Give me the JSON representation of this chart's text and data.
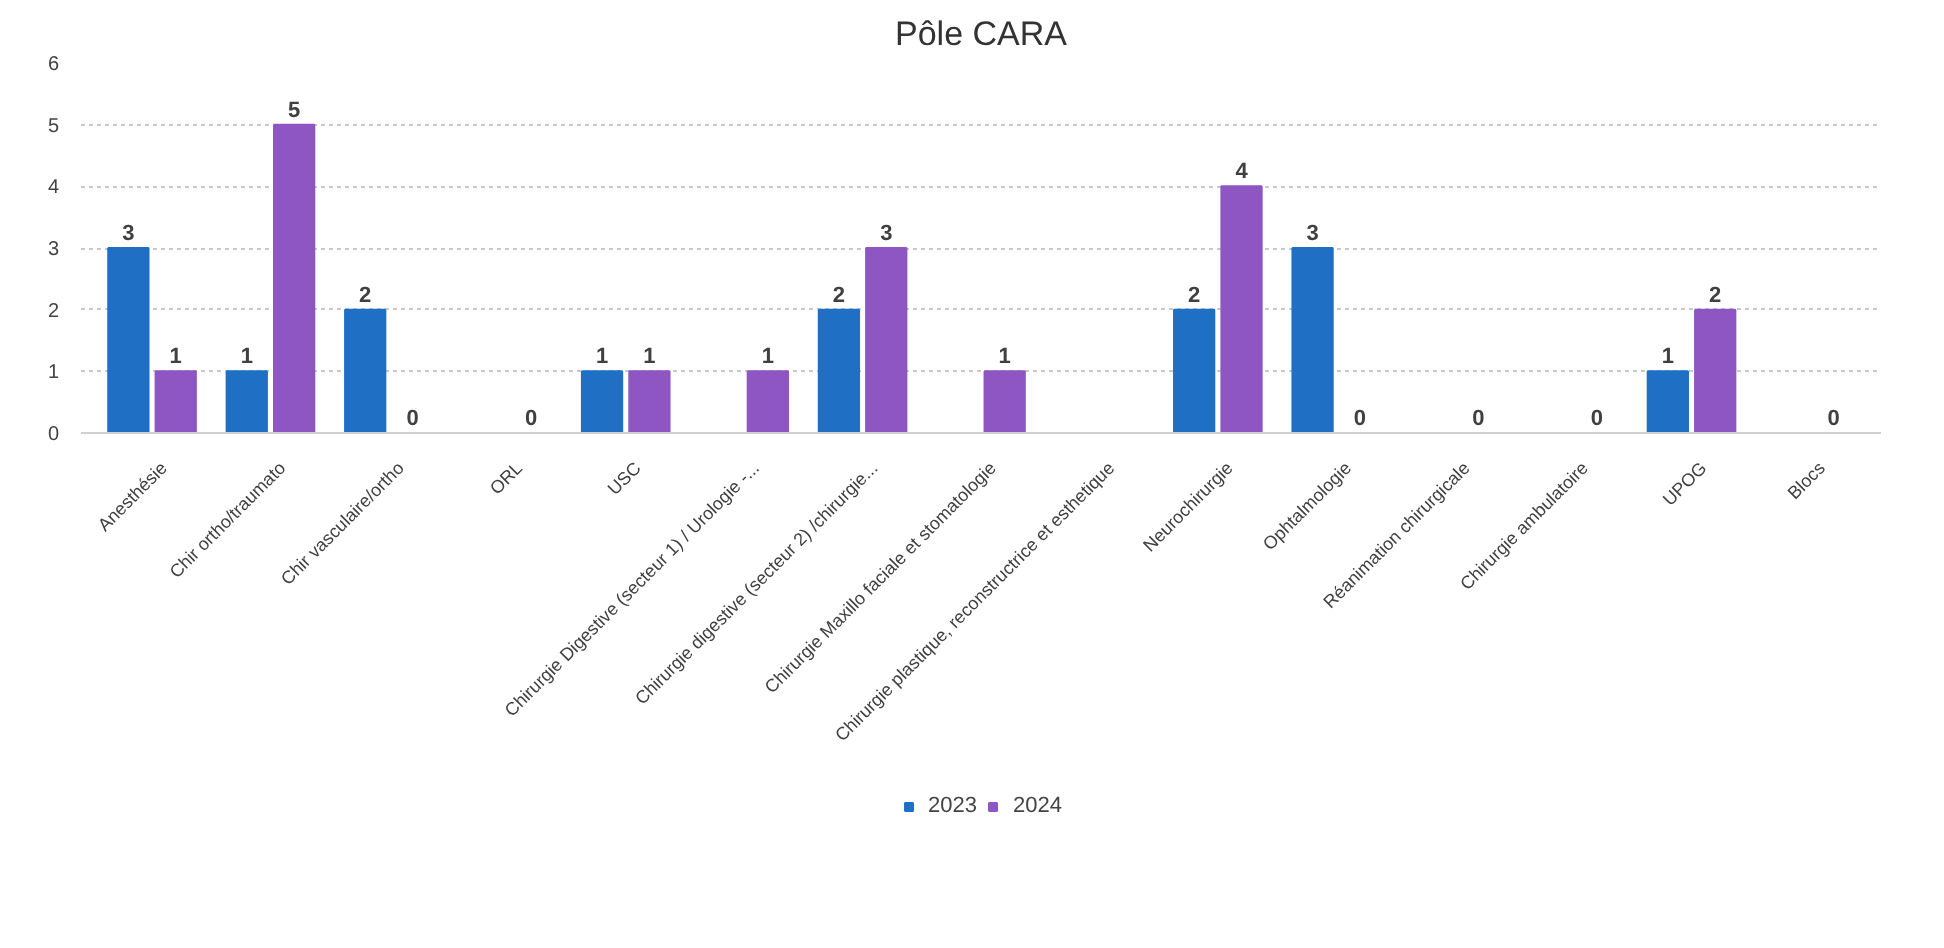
{
  "chart_data": {
    "type": "bar",
    "title": "Pôle CARA",
    "categories": [
      "Anesthésie",
      "Chir ortho/traumato",
      "Chir vasculaire/ortho",
      "ORL",
      "USC",
      "Chirurgie Digestive (secteur 1) / Urologie -...",
      "Chirurgie digestive (secteur 2) /chirurgie...",
      "Chirurgie Maxillo faciale et stomatologie",
      "Chirurgie plastique, reconstructrice et esthetique",
      "Neurochirurgie",
      "Ophtalmologie",
      "Réanimation chirurgicale",
      "Chirurgie ambulatoire",
      "UPOG",
      "Blocs"
    ],
    "series": [
      {
        "name": "2023",
        "color": "#1f6fc5",
        "values": [
          3,
          1,
          2,
          null,
          1,
          null,
          2,
          null,
          null,
          2,
          3,
          null,
          null,
          1,
          null
        ]
      },
      {
        "name": "2024",
        "color": "#8e56c2",
        "values": [
          1,
          5,
          0,
          0,
          1,
          1,
          3,
          1,
          null,
          4,
          0,
          0,
          0,
          2,
          0
        ]
      }
    ],
    "ylim": [
      0,
      6
    ],
    "yticks": [
      0,
      1,
      2,
      3,
      4,
      5,
      6
    ],
    "grid": "y",
    "legend": "bottom",
    "data_labels": true
  }
}
